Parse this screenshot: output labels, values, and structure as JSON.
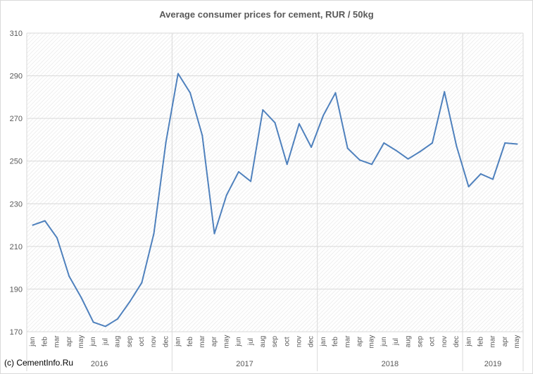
{
  "title": "Average consumer prices for cement, RUR / 50kg",
  "copyright": "(c) CementInfo.Ru",
  "colors": {
    "line": "#4f81bd",
    "grid": "#d9d9d9",
    "text": "#595959",
    "hatch": "#e6e6e6"
  },
  "chart_data": {
    "type": "line",
    "title": "Average consumer prices for cement, RUR / 50kg",
    "xlabel": "",
    "ylabel": "",
    "ylim": [
      170,
      310
    ],
    "yticks": [
      170,
      190,
      210,
      230,
      250,
      270,
      290,
      310
    ],
    "grid": true,
    "legend": "none",
    "years": [
      {
        "label": "2016",
        "months": 12
      },
      {
        "label": "2017",
        "months": 12
      },
      {
        "label": "2018",
        "months": 12
      },
      {
        "label": "2019",
        "months": 5
      }
    ],
    "categories": [
      "jan",
      "feb",
      "mar",
      "apr",
      "may",
      "jun",
      "jul",
      "aug",
      "sep",
      "oct",
      "nov",
      "dec",
      "jan",
      "feb",
      "mar",
      "apr",
      "may",
      "jun",
      "jul",
      "aug",
      "sep",
      "oct",
      "nov",
      "dec",
      "jan",
      "feb",
      "mar",
      "apr",
      "may",
      "jun",
      "jul",
      "aug",
      "sep",
      "oct",
      "nov",
      "dec",
      "jan",
      "feb",
      "mar",
      "apr",
      "may"
    ],
    "series": [
      {
        "values": [
          220,
          222,
          214,
          196,
          186,
          174.5,
          172.5,
          176,
          184,
          193,
          216,
          259,
          291,
          282,
          262,
          216,
          234,
          245,
          240.5,
          274,
          268,
          248.5,
          267.5,
          256.5,
          271.5,
          282,
          256,
          250.5,
          248.5,
          258.5,
          255,
          251,
          254.5,
          258.5,
          282.5,
          257,
          238,
          244,
          241.5,
          258.5,
          258
        ]
      }
    ]
  }
}
